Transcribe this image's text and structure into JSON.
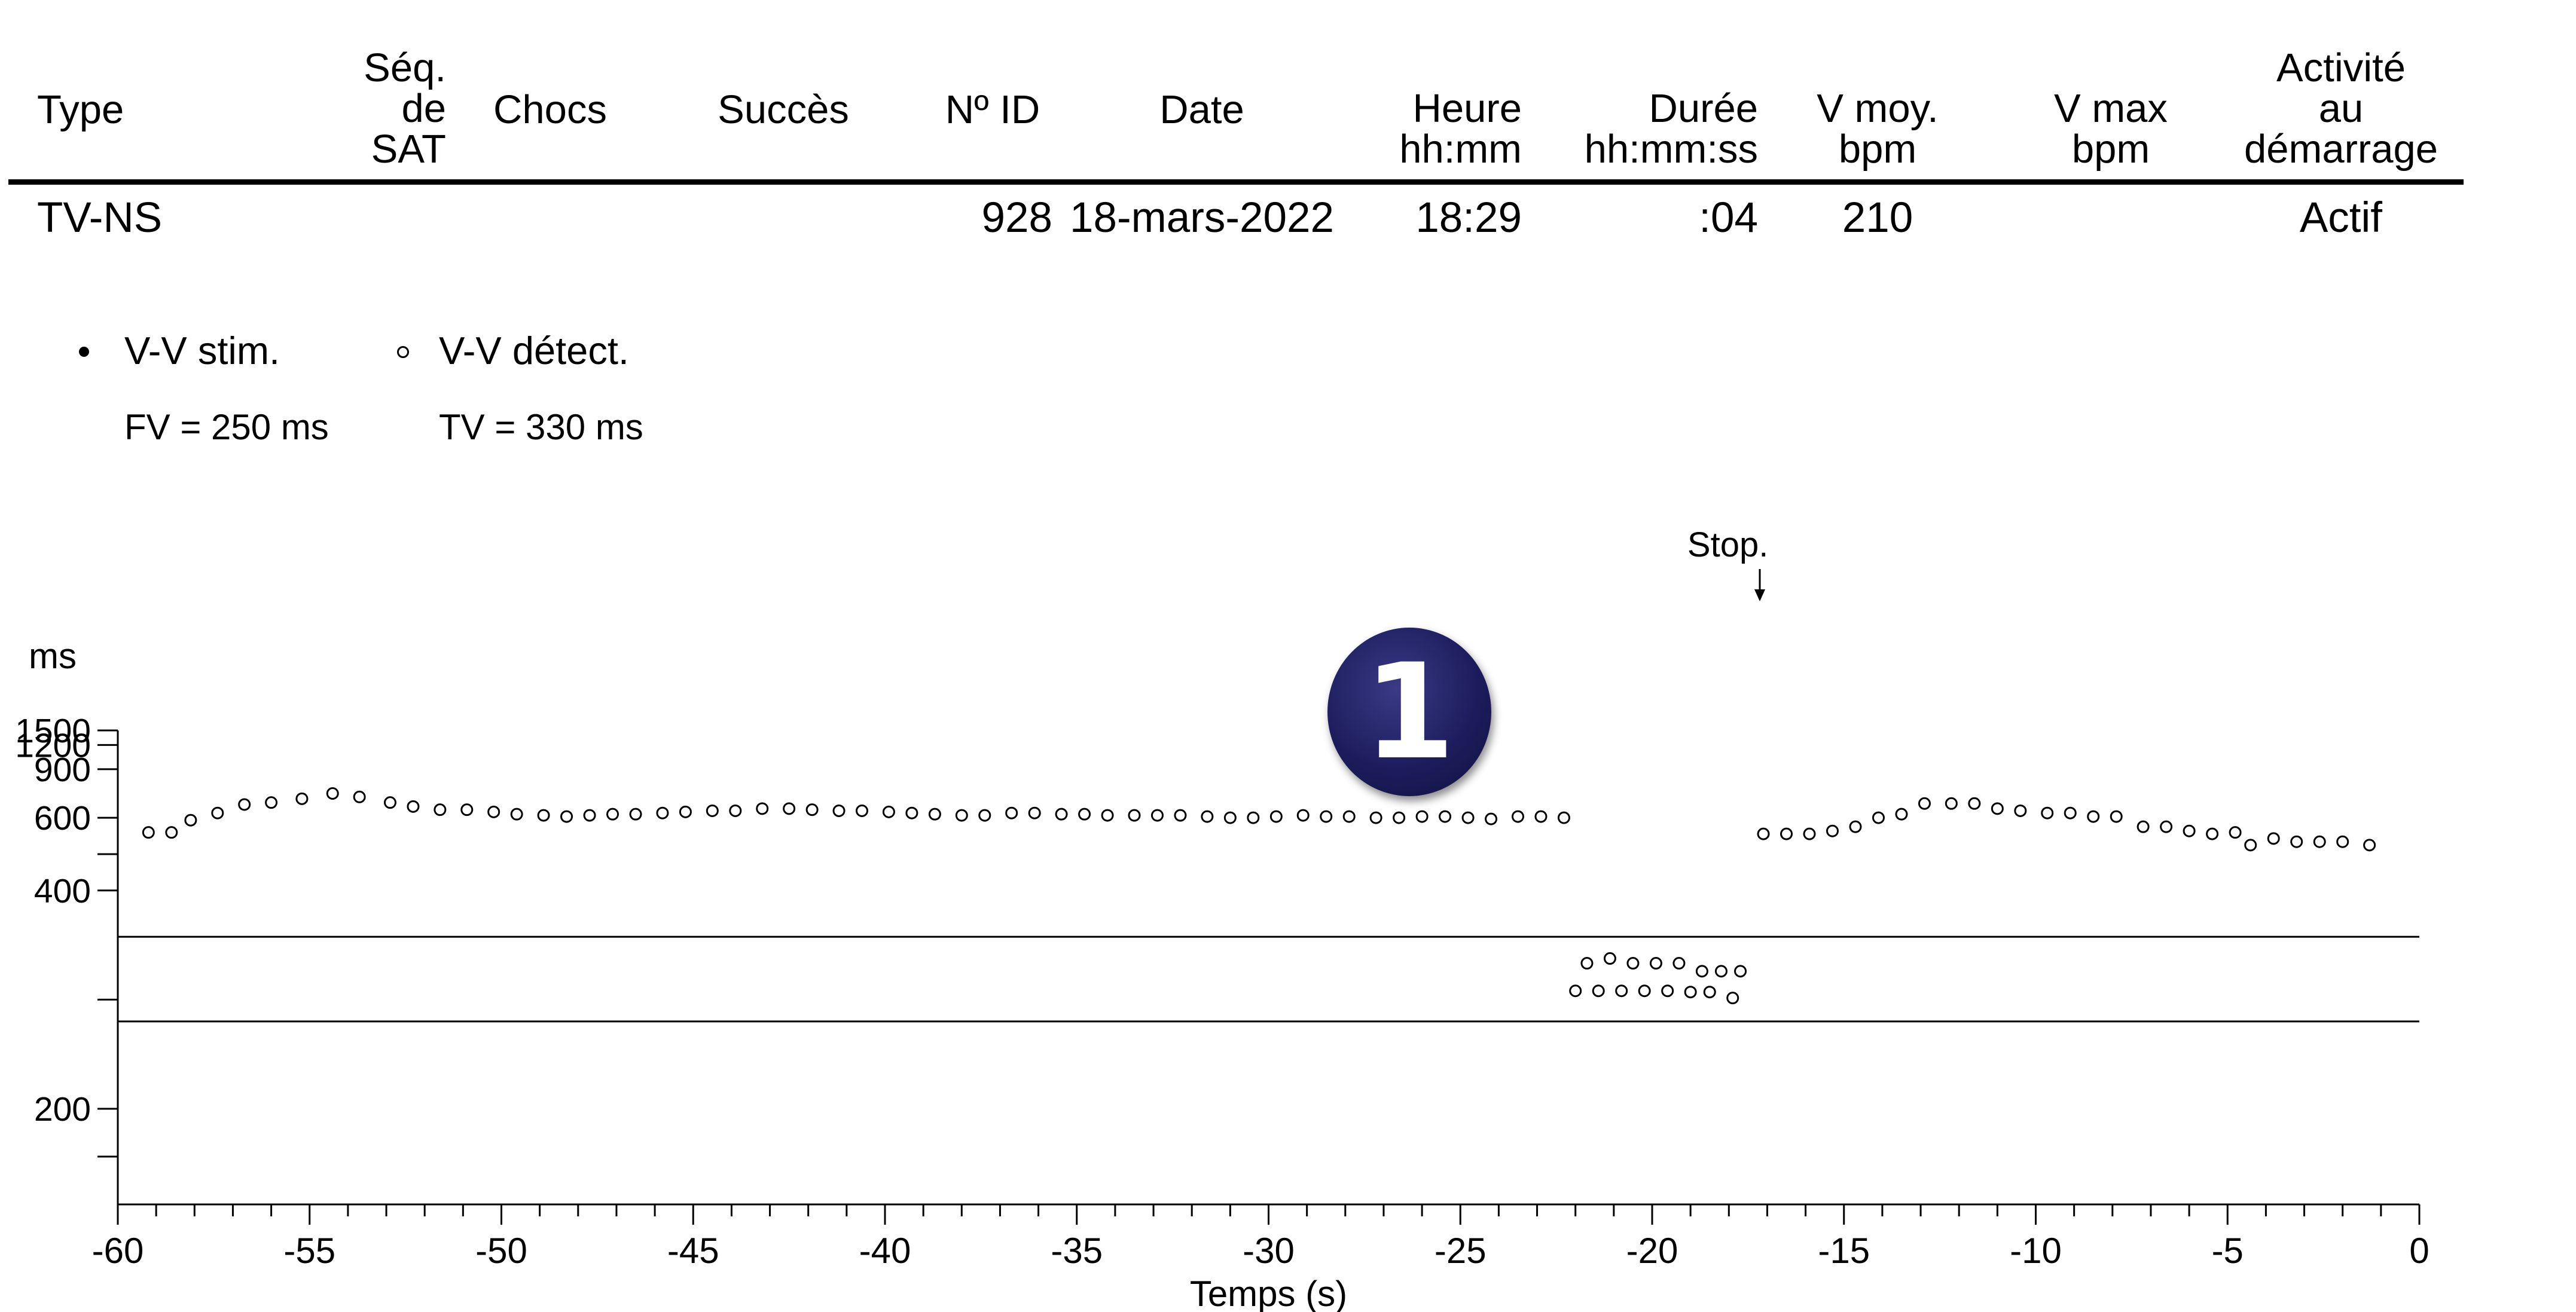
{
  "report": {
    "columns": [
      {
        "lines": [
          "Type"
        ]
      },
      {
        "lines": [
          "Séq.",
          "de",
          "SAT"
        ]
      },
      {
        "lines": [
          "Chocs"
        ]
      },
      {
        "lines": [
          "Succès"
        ]
      },
      {
        "lines": [
          "Nº ID"
        ]
      },
      {
        "lines": [
          "Date"
        ]
      },
      {
        "lines": [
          "Heure",
          "hh:mm"
        ]
      },
      {
        "lines": [
          "Durée",
          "hh:mm:ss"
        ]
      },
      {
        "lines": [
          "V moy.",
          "bpm"
        ]
      },
      {
        "lines": [
          "V max",
          "bpm"
        ]
      },
      {
        "lines": [
          "Activité",
          "au",
          "démarrage"
        ]
      }
    ],
    "row": [
      "TV-NS",
      "",
      "",
      "",
      "928",
      "18-mars-2022",
      "18:29",
      ":04",
      "210",
      "",
      "Actif"
    ]
  },
  "legend": {
    "paced": {
      "label": "V-V stim.",
      "sub": "FV = 250 ms"
    },
    "sensed": {
      "label": "V-V détect.",
      "sub": "TV = 330 ms"
    }
  },
  "annotation": {
    "stop_label": "Stop.",
    "stop_arrow": "↓",
    "badge": "1"
  },
  "chart_data": {
    "type": "scatter",
    "xlabel": "Temps (s)",
    "ylabel": "ms",
    "xlim": [
      -60,
      0
    ],
    "x_ticks": [
      -60,
      -55,
      -50,
      -45,
      -40,
      -35,
      -30,
      -25,
      -20,
      -15,
      -10,
      -5,
      0
    ],
    "y_ticks": [
      1500,
      1200,
      900,
      600,
      400,
      200
    ],
    "y_scale": "reciprocal",
    "ylim": [
      125,
      1500
    ],
    "grid": false,
    "threshold_lines": [
      {
        "label": "FV",
        "value": 250
      },
      {
        "label": "TV",
        "value": 330
      }
    ],
    "stop_at": -17.2,
    "series": [
      {
        "name": "V-V détect.",
        "marker": "open-circle",
        "points": [
          [
            -59.2,
            545
          ],
          [
            -58.6,
            545
          ],
          [
            -58.1,
            590
          ],
          [
            -57.4,
            620
          ],
          [
            -56.7,
            660
          ],
          [
            -56.0,
            670
          ],
          [
            -55.2,
            690
          ],
          [
            -54.4,
            720
          ],
          [
            -53.7,
            700
          ],
          [
            -52.9,
            670
          ],
          [
            -52.3,
            650
          ],
          [
            -51.6,
            635
          ],
          [
            -50.9,
            635
          ],
          [
            -50.2,
            625
          ],
          [
            -49.6,
            615
          ],
          [
            -48.9,
            610
          ],
          [
            -48.3,
            605
          ],
          [
            -47.7,
            610
          ],
          [
            -47.1,
            615
          ],
          [
            -46.5,
            615
          ],
          [
            -45.8,
            620
          ],
          [
            -45.2,
            625
          ],
          [
            -44.5,
            630
          ],
          [
            -43.9,
            630
          ],
          [
            -43.2,
            640
          ],
          [
            -42.5,
            640
          ],
          [
            -41.9,
            635
          ],
          [
            -41.2,
            630
          ],
          [
            -40.6,
            630
          ],
          [
            -39.9,
            625
          ],
          [
            -39.3,
            620
          ],
          [
            -38.7,
            615
          ],
          [
            -38.0,
            610
          ],
          [
            -37.4,
            610
          ],
          [
            -36.7,
            620
          ],
          [
            -36.1,
            620
          ],
          [
            -35.4,
            615
          ],
          [
            -34.8,
            615
          ],
          [
            -34.2,
            610
          ],
          [
            -33.5,
            610
          ],
          [
            -32.9,
            610
          ],
          [
            -32.3,
            610
          ],
          [
            -31.6,
            605
          ],
          [
            -31.0,
            600
          ],
          [
            -30.4,
            600
          ],
          [
            -29.8,
            605
          ],
          [
            -29.1,
            610
          ],
          [
            -28.5,
            605
          ],
          [
            -27.9,
            605
          ],
          [
            -27.2,
            600
          ],
          [
            -26.6,
            600
          ],
          [
            -26.0,
            605
          ],
          [
            -25.4,
            605
          ],
          [
            -24.8,
            600
          ],
          [
            -24.2,
            595
          ],
          [
            -23.5,
            605
          ],
          [
            -22.9,
            605
          ],
          [
            -22.3,
            600
          ],
          [
            -21.7,
            300
          ],
          [
            -21.1,
            305
          ],
          [
            -20.5,
            300
          ],
          [
            -19.9,
            300
          ],
          [
            -19.3,
            300
          ],
          [
            -18.7,
            292
          ],
          [
            -18.2,
            292
          ],
          [
            -17.7,
            292
          ],
          [
            -22.0,
            274
          ],
          [
            -21.4,
            274
          ],
          [
            -20.8,
            274
          ],
          [
            -20.2,
            274
          ],
          [
            -19.6,
            274
          ],
          [
            -19.0,
            273
          ],
          [
            -18.5,
            273
          ],
          [
            -17.9,
            268
          ],
          [
            -17.1,
            540
          ],
          [
            -16.5,
            540
          ],
          [
            -15.9,
            540
          ],
          [
            -15.3,
            550
          ],
          [
            -14.7,
            565
          ],
          [
            -14.1,
            600
          ],
          [
            -13.5,
            615
          ],
          [
            -12.9,
            665
          ],
          [
            -12.2,
            665
          ],
          [
            -11.6,
            665
          ],
          [
            -11.0,
            640
          ],
          [
            -10.4,
            630
          ],
          [
            -9.7,
            620
          ],
          [
            -9.1,
            620
          ],
          [
            -8.5,
            605
          ],
          [
            -7.9,
            605
          ],
          [
            -7.2,
            565
          ],
          [
            -6.6,
            565
          ],
          [
            -6.0,
            550
          ],
          [
            -5.4,
            540
          ],
          [
            -4.8,
            545
          ],
          [
            -4.4,
            505
          ],
          [
            -3.8,
            525
          ],
          [
            -3.2,
            515
          ],
          [
            -2.6,
            515
          ],
          [
            -2.0,
            515
          ],
          [
            -1.3,
            505
          ]
        ]
      }
    ]
  }
}
